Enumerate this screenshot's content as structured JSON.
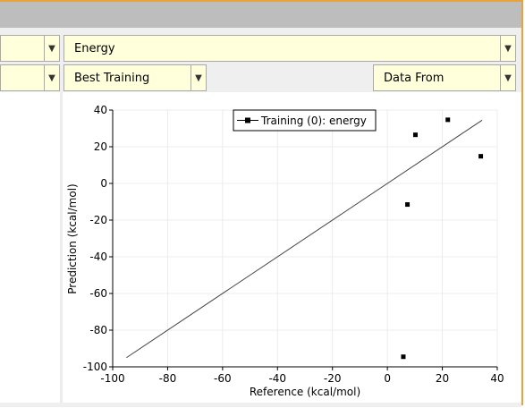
{
  "toolbar": {
    "row1": {
      "right_combo": "Energy"
    },
    "row2": {
      "middle_combo": "Best Training",
      "right_combo": "Data From"
    }
  },
  "chart_data": {
    "type": "scatter",
    "xlabel": "Reference (kcal/mol)",
    "ylabel": "Prediction (kcal/mol)",
    "xlim": [
      -100,
      40
    ],
    "ylim": [
      -100,
      40
    ],
    "xticks": [
      -100,
      -80,
      -60,
      -40,
      -20,
      0,
      20,
      40
    ],
    "yticks": [
      -100,
      -80,
      -60,
      -40,
      -20,
      0,
      20,
      40
    ],
    "grid": true,
    "legend_position": "top-center",
    "series": [
      {
        "name": "Training (0): energy",
        "points": [
          {
            "x": 5.8,
            "y": -94.5
          },
          {
            "x": 7.3,
            "y": -11.5
          },
          {
            "x": 10.2,
            "y": 26.5
          },
          {
            "x": 22.0,
            "y": 34.7
          },
          {
            "x": 34.0,
            "y": 14.8
          }
        ]
      }
    ],
    "fit_line": {
      "x": [
        -95,
        34.5
      ],
      "y": [
        -95,
        34.5
      ]
    }
  }
}
